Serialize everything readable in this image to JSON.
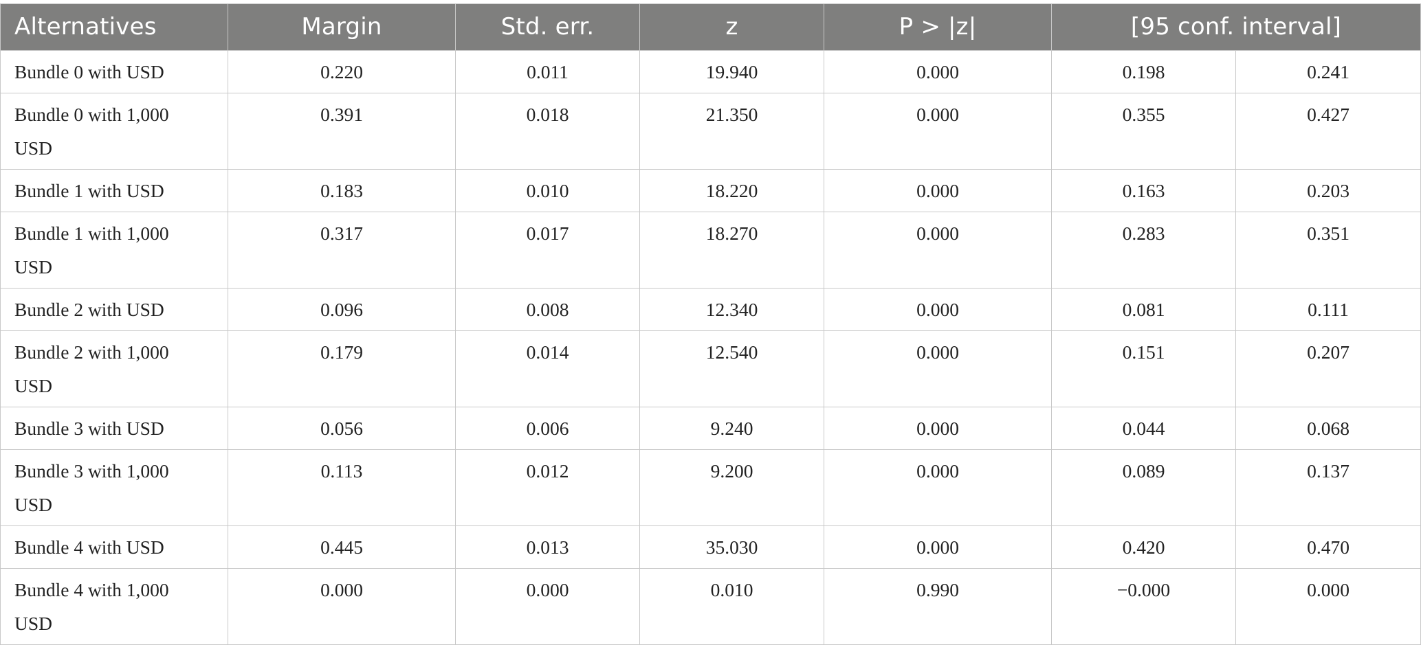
{
  "table": {
    "headers": {
      "alternatives": "Alternatives",
      "margin": "Margin",
      "std_err": "Std. err.",
      "z": "z",
      "p": "P > |z|",
      "ci": "[95 conf. interval]"
    },
    "rows": [
      {
        "alt": "Bundle 0 with USD",
        "margin": "0.220",
        "se": "0.011",
        "z": "19.940",
        "p": "0.000",
        "lo": "0.198",
        "hi": "0.241"
      },
      {
        "alt": "Bundle 0 with 1,000 USD",
        "margin": "0.391",
        "se": "0.018",
        "z": "21.350",
        "p": "0.000",
        "lo": "0.355",
        "hi": "0.427"
      },
      {
        "alt": "Bundle 1 with USD",
        "margin": "0.183",
        "se": "0.010",
        "z": "18.220",
        "p": "0.000",
        "lo": "0.163",
        "hi": "0.203"
      },
      {
        "alt": "Bundle 1 with 1,000 USD",
        "margin": "0.317",
        "se": "0.017",
        "z": "18.270",
        "p": "0.000",
        "lo": "0.283",
        "hi": "0.351"
      },
      {
        "alt": "Bundle 2 with USD",
        "margin": "0.096",
        "se": "0.008",
        "z": "12.340",
        "p": "0.000",
        "lo": "0.081",
        "hi": "0.111"
      },
      {
        "alt": "Bundle 2 with 1,000 USD",
        "margin": "0.179",
        "se": "0.014",
        "z": "12.540",
        "p": "0.000",
        "lo": "0.151",
        "hi": "0.207"
      },
      {
        "alt": "Bundle 3 with USD",
        "margin": "0.056",
        "se": "0.006",
        "z": "9.240",
        "p": "0.000",
        "lo": "0.044",
        "hi": "0.068"
      },
      {
        "alt": "Bundle 3 with 1,000 USD",
        "margin": "0.113",
        "se": "0.012",
        "z": "9.200",
        "p": "0.000",
        "lo": "0.089",
        "hi": "0.137"
      },
      {
        "alt": "Bundle 4 with USD",
        "margin": "0.445",
        "se": "0.013",
        "z": "35.030",
        "p": "0.000",
        "lo": "0.420",
        "hi": "0.470"
      },
      {
        "alt": "Bundle 4 with 1,000 USD",
        "margin": "0.000",
        "se": "0.000",
        "z": "0.010",
        "p": "0.990",
        "lo": "−0.000",
        "hi": "0.000"
      }
    ]
  },
  "colors": {
    "header_bg": "#7f7f7e",
    "header_text": "#ffffff",
    "grid": "#c8c8c8"
  }
}
